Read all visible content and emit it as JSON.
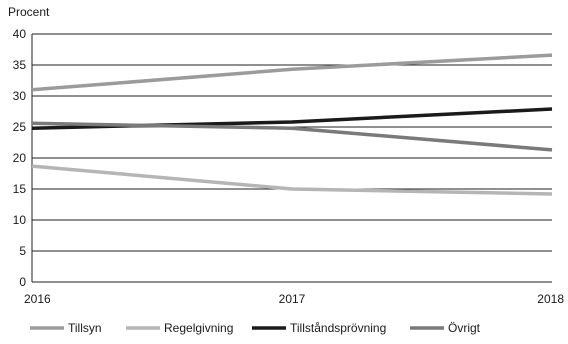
{
  "chart_data": {
    "type": "line",
    "ylabel": "Procent",
    "x": [
      "2016",
      "2017",
      "2018"
    ],
    "ylim": [
      0,
      40
    ],
    "yticks": [
      0,
      5,
      10,
      15,
      20,
      25,
      30,
      35,
      40
    ],
    "grid": "horizontal",
    "legend_position": "bottom",
    "series": [
      {
        "name": "Tillsyn",
        "values": [
          31,
          34.3,
          36.6
        ],
        "color": "#9b9b9b"
      },
      {
        "name": "Regelgivning",
        "values": [
          18.7,
          15,
          14.2
        ],
        "color": "#b5b5b5"
      },
      {
        "name": "Tillståndsprövning",
        "values": [
          24.8,
          25.8,
          27.9
        ],
        "color": "#1a1a1a"
      },
      {
        "name": "Övrigt",
        "values": [
          25.6,
          24.8,
          21.3
        ],
        "color": "#7a7a7a"
      }
    ]
  }
}
